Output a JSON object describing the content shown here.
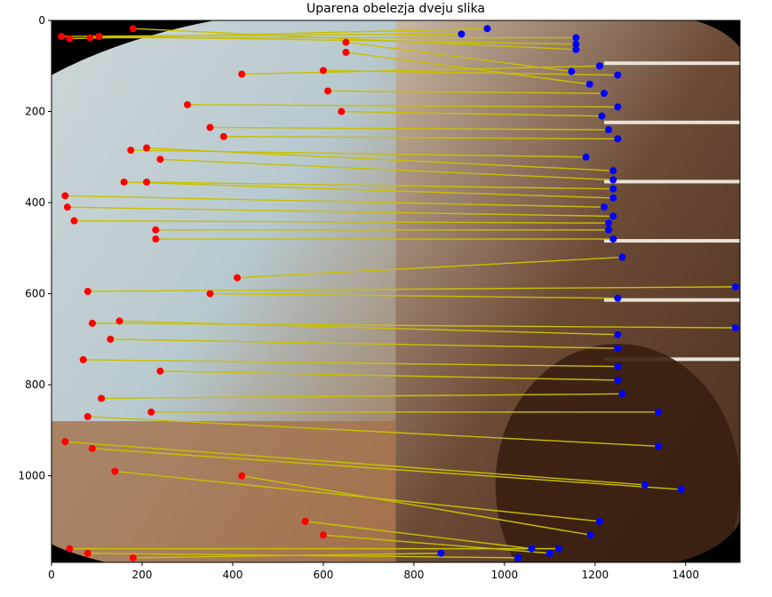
{
  "chart_data": {
    "type": "scatter",
    "title": "Uparena obelezja dveju slika",
    "xlabel": "",
    "ylabel": "",
    "xlim": [
      0,
      1520
    ],
    "ylim": [
      1190,
      0
    ],
    "x_ticks": [
      "0",
      "200",
      "400",
      "600",
      "800",
      "1000",
      "1200",
      "1400"
    ],
    "y_ticks": [
      "0",
      "200",
      "400",
      "600",
      "800",
      "1000"
    ],
    "grid": false,
    "y_axis_inverted": true,
    "background_image": "two side-by-side stitched interior photos (living room with armchairs and paintings; bookshelf and table)",
    "seam_x": 760,
    "colors": {
      "left_points": "#ff0000",
      "right_points": "#0000ff",
      "match_lines": "#c8c000"
    },
    "series": [
      {
        "name": "",
        "role": "matches",
        "pairs": [
          [
            [
              22,
              35
            ],
            [
              905,
              30
            ]
          ],
          [
            [
              40,
              40
            ],
            [
              962,
              18
            ]
          ],
          [
            [
              85,
              38
            ],
            [
              1158,
              38
            ]
          ],
          [
            [
              105,
              35
            ],
            [
              1158,
              52
            ]
          ],
          [
            [
              180,
              18
            ],
            [
              1158,
              64
            ]
          ],
          [
            [
              650,
              48
            ],
            [
              1148,
              112
            ]
          ],
          [
            [
              650,
              70
            ],
            [
              1188,
              140
            ]
          ],
          [
            [
              420,
              118
            ],
            [
              1210,
              100
            ]
          ],
          [
            [
              600,
              110
            ],
            [
              1250,
              120
            ]
          ],
          [
            [
              610,
              155
            ],
            [
              1220,
              160
            ]
          ],
          [
            [
              300,
              185
            ],
            [
              1250,
              190
            ]
          ],
          [
            [
              640,
              200
            ],
            [
              1215,
              210
            ]
          ],
          [
            [
              350,
              235
            ],
            [
              1230,
              240
            ]
          ],
          [
            [
              380,
              255
            ],
            [
              1250,
              260
            ]
          ],
          [
            [
              175,
              285
            ],
            [
              1180,
              300
            ]
          ],
          [
            [
              210,
              280
            ],
            [
              1240,
              330
            ]
          ],
          [
            [
              240,
              305
            ],
            [
              1240,
              350
            ]
          ],
          [
            [
              210,
              355
            ],
            [
              1240,
              370
            ]
          ],
          [
            [
              160,
              355
            ],
            [
              1240,
              390
            ]
          ],
          [
            [
              30,
              385
            ],
            [
              1220,
              410
            ]
          ],
          [
            [
              35,
              410
            ],
            [
              1240,
              430
            ]
          ],
          [
            [
              50,
              440
            ],
            [
              1230,
              445
            ]
          ],
          [
            [
              230,
              460
            ],
            [
              1230,
              460
            ]
          ],
          [
            [
              230,
              480
            ],
            [
              1240,
              480
            ]
          ],
          [
            [
              410,
              565
            ],
            [
              1260,
              520
            ]
          ],
          [
            [
              80,
              595
            ],
            [
              1510,
              585
            ]
          ],
          [
            [
              350,
              600
            ],
            [
              1250,
              610
            ]
          ],
          [
            [
              90,
              665
            ],
            [
              1510,
              675
            ]
          ],
          [
            [
              150,
              660
            ],
            [
              1250,
              690
            ]
          ],
          [
            [
              130,
              700
            ],
            [
              1250,
              720
            ]
          ],
          [
            [
              70,
              745
            ],
            [
              1250,
              760
            ]
          ],
          [
            [
              240,
              770
            ],
            [
              1250,
              790
            ]
          ],
          [
            [
              110,
              830
            ],
            [
              1260,
              820
            ]
          ],
          [
            [
              220,
              860
            ],
            [
              1340,
              860
            ]
          ],
          [
            [
              80,
              870
            ],
            [
              1340,
              935
            ]
          ],
          [
            [
              30,
              925
            ],
            [
              1310,
              1020
            ]
          ],
          [
            [
              90,
              940
            ],
            [
              1390,
              1030
            ]
          ],
          [
            [
              140,
              990
            ],
            [
              1210,
              1100
            ]
          ],
          [
            [
              420,
              1000
            ],
            [
              1190,
              1130
            ]
          ],
          [
            [
              560,
              1100
            ],
            [
              1060,
              1160
            ]
          ],
          [
            [
              600,
              1130
            ],
            [
              1100,
              1170
            ]
          ],
          [
            [
              40,
              1160
            ],
            [
              1120,
              1160
            ]
          ],
          [
            [
              80,
              1170
            ],
            [
              1030,
              1180
            ]
          ],
          [
            [
              180,
              1180
            ],
            [
              860,
              1170
            ]
          ]
        ]
      }
    ]
  }
}
